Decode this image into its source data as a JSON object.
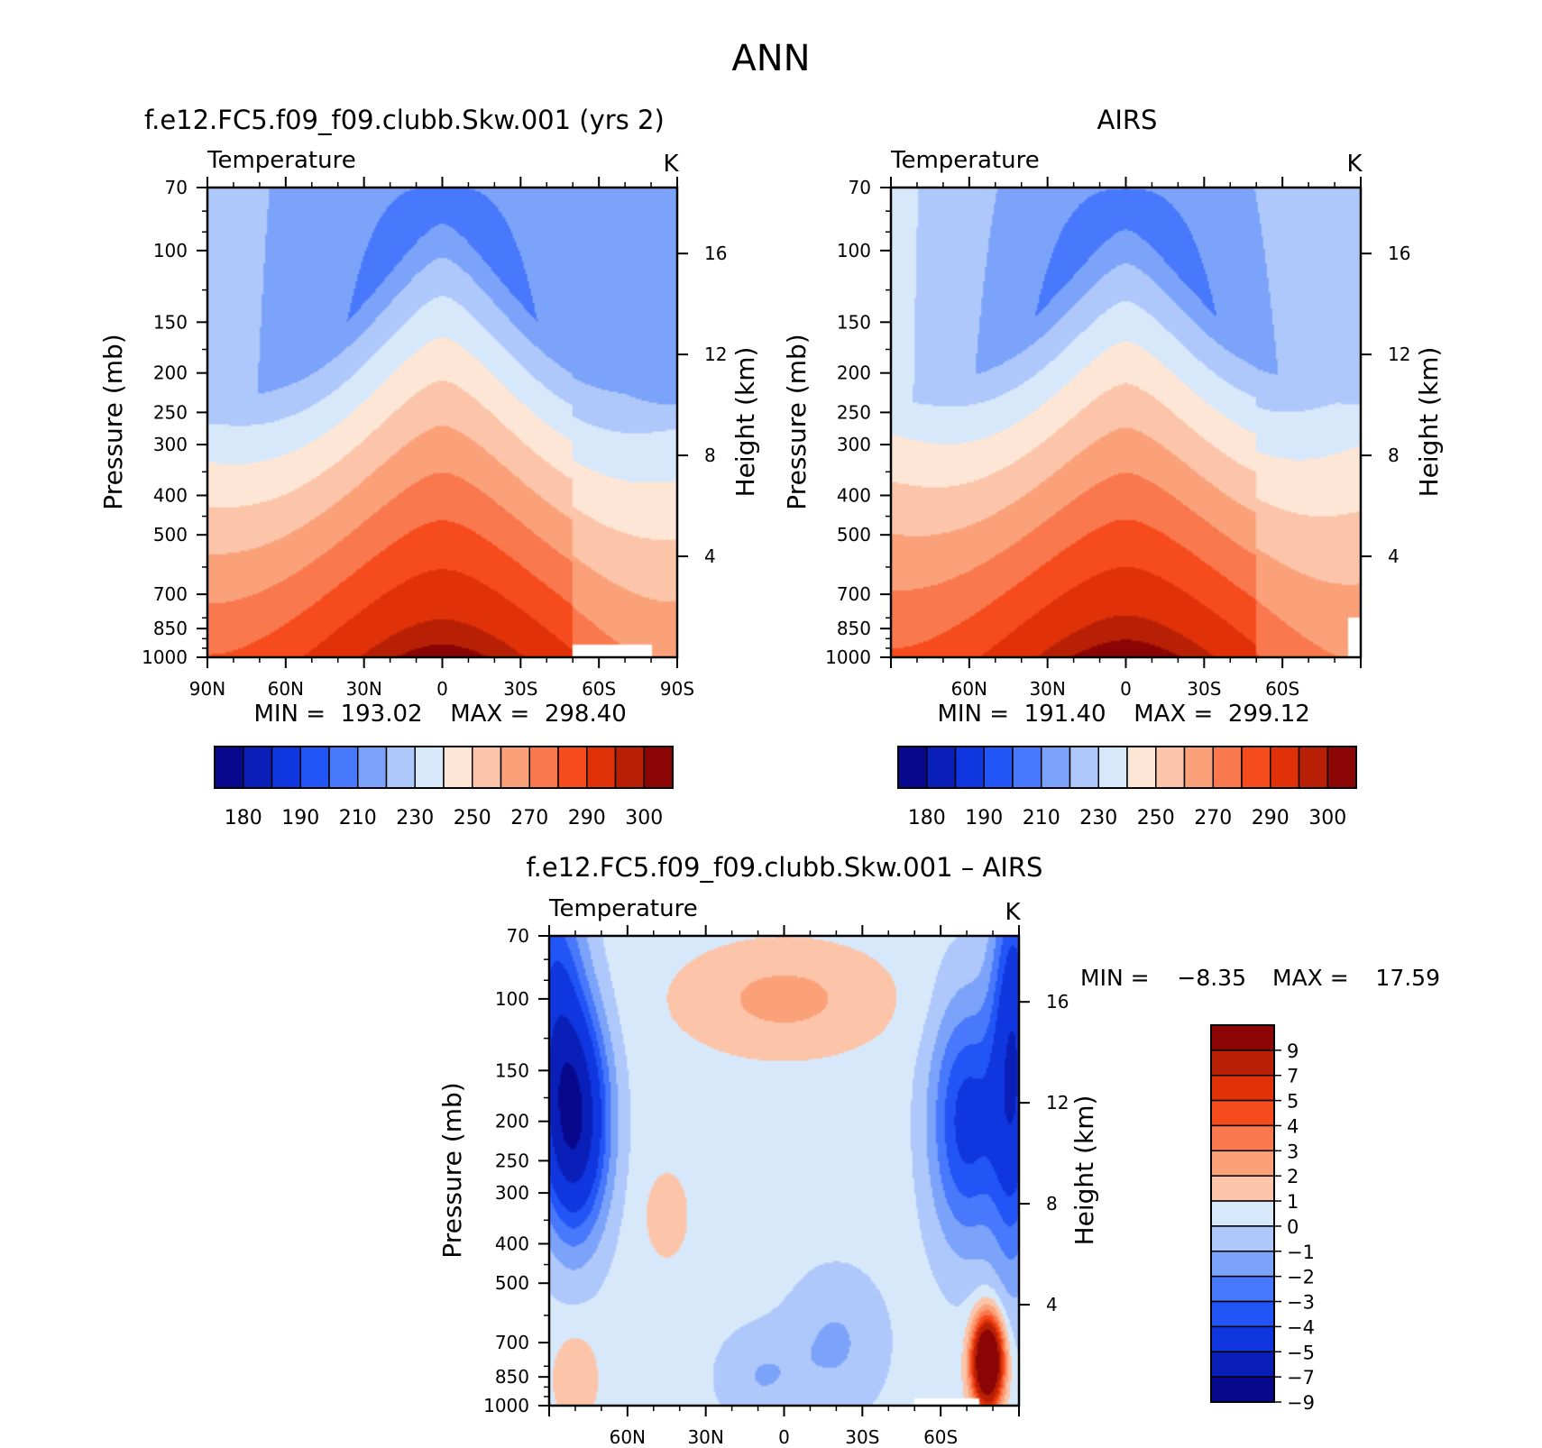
{
  "figure": {
    "title": "ANN"
  },
  "colors": {
    "abs_levels": [
      "#08088c",
      "#0a1fb8",
      "#1036e0",
      "#2255f5",
      "#4878fb",
      "#7ca3fa",
      "#aec8fb",
      "#d8e8fb",
      "#fde6d6",
      "#fcc4a8",
      "#fba17a",
      "#fa784d",
      "#f64c1d",
      "#e03109",
      "#b82005",
      "#8a0504"
    ],
    "diff_levels": [
      "#08088c",
      "#0a1fb8",
      "#1036e0",
      "#2255f5",
      "#4878fb",
      "#7ca3fa",
      "#aec8fb",
      "#d8e8fb",
      "#fde6d6",
      "#fcc4a8",
      "#fba17a",
      "#fa784d",
      "#f64c1d",
      "#e03109",
      "#b82005",
      "#8a0504"
    ]
  },
  "chart_data": [
    {
      "id": "model",
      "type": "heatmap",
      "title": "f.e12.FC5.f09_f09.clubb.Skw.001 (yrs 2)",
      "subtitle_left": "Temperature",
      "units": "K",
      "ylabel": "Pressure (mb)",
      "y2label": "Height (km)",
      "yticks": [
        70,
        100,
        150,
        200,
        250,
        300,
        400,
        500,
        700,
        850,
        1000
      ],
      "ytick_labels": [
        "70",
        "100",
        "150",
        "200",
        "250",
        "300",
        "400",
        "500",
        "700",
        "850",
        "1000"
      ],
      "y2ticks": [
        4,
        8,
        12,
        16
      ],
      "y2tick_labels": [
        "4",
        "8",
        "12",
        "16"
      ],
      "xlim": [
        90,
        -90
      ],
      "xticks": [
        90,
        60,
        30,
        0,
        -30,
        -60,
        -90
      ],
      "xtick_labels": [
        "90N",
        "60N",
        "30N",
        "0",
        "30S",
        "60S",
        "90S"
      ],
      "min_label": "MIN =  193.02",
      "max_label": "MAX =  298.40",
      "field": {
        "min": 193.02,
        "max": 298.4,
        "surface": 297.5,
        "cold_trop": 195.0,
        "polar_low": 214.0,
        "polar_south": 207.0
      },
      "colorbar": {
        "levels": [
          175,
          180,
          185,
          190,
          200,
          210,
          220,
          230,
          240,
          250,
          260,
          270,
          280,
          290,
          295,
          300
        ],
        "tick_labels": [
          "180",
          "190",
          "210",
          "230",
          "250",
          "270",
          "290",
          "300"
        ]
      }
    },
    {
      "id": "obs",
      "type": "heatmap",
      "title": "AIRS",
      "subtitle_left": "Temperature",
      "units": "K",
      "ylabel": "Pressure (mb)",
      "y2label": "Height (km)",
      "yticks": [
        70,
        100,
        150,
        200,
        250,
        300,
        400,
        500,
        700,
        850,
        1000
      ],
      "ytick_labels": [
        "70",
        "100",
        "150",
        "200",
        "250",
        "300",
        "400",
        "500",
        "700",
        "850",
        "1000"
      ],
      "y2ticks": [
        4,
        8,
        12,
        16
      ],
      "y2tick_labels": [
        "4",
        "8",
        "12",
        "16"
      ],
      "xlim": [
        90,
        -90
      ],
      "xticks": [
        60,
        30,
        0,
        -30,
        -60
      ],
      "xtick_labels": [
        "60N",
        "30N",
        "0",
        "30S",
        "60S"
      ],
      "min_label": "MIN =  191.40",
      "max_label": "MAX =  299.12",
      "field": {
        "min": 191.4,
        "max": 299.12,
        "surface": 298.5,
        "cold_trop": 193.0,
        "polar_low": 222.0,
        "polar_south": 209.0
      },
      "colorbar": {
        "levels": [
          175,
          180,
          185,
          190,
          200,
          210,
          220,
          230,
          240,
          250,
          260,
          270,
          280,
          290,
          295,
          300
        ],
        "tick_labels": [
          "180",
          "190",
          "210",
          "230",
          "250",
          "270",
          "290",
          "300"
        ]
      }
    },
    {
      "id": "diff",
      "type": "heatmap",
      "title": "f.e12.FC5.f09_f09.clubb.Skw.001 – AIRS",
      "subtitle_left": "Temperature",
      "units": "K",
      "ylabel": "Pressure (mb)",
      "y2label": "Height (km)",
      "yticks": [
        70,
        100,
        150,
        200,
        250,
        300,
        400,
        500,
        700,
        850,
        1000
      ],
      "ytick_labels": [
        "70",
        "100",
        "150",
        "200",
        "250",
        "300",
        "400",
        "500",
        "700",
        "850",
        "1000"
      ],
      "y2ticks": [
        4,
        8,
        12,
        16
      ],
      "y2tick_labels": [
        "4",
        "8",
        "12",
        "16"
      ],
      "xlim": [
        90,
        -90
      ],
      "xticks": [
        60,
        30,
        0,
        -30,
        -60
      ],
      "xtick_labels": [
        "60N",
        "30N",
        "0",
        "30S",
        "60S"
      ],
      "min_label": "MIN =",
      "min_value": "−8.35",
      "max_label": "MAX =",
      "max_value": "17.59",
      "field": {
        "min": -8.35,
        "max": 17.59
      },
      "colorbar": {
        "levels": [
          -9,
          -7,
          -5,
          -4,
          -3,
          -2,
          -1,
          0,
          1,
          2,
          3,
          4,
          5,
          7,
          9
        ],
        "tick_labels": [
          "9",
          "7",
          "5",
          "4",
          "3",
          "2",
          "1",
          "0",
          "−1",
          "−2",
          "−3",
          "−4",
          "−5",
          "−7",
          "−9"
        ]
      }
    }
  ]
}
